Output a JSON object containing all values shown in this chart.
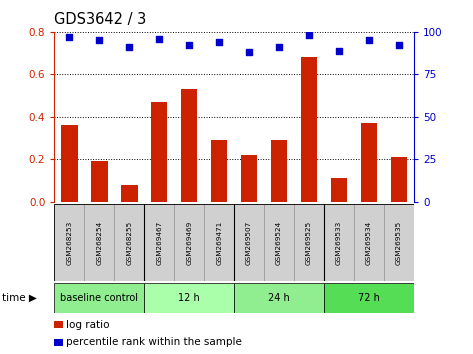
{
  "title": "GDS3642 / 3",
  "samples": [
    "GSM268253",
    "GSM268254",
    "GSM268255",
    "GSM269467",
    "GSM269469",
    "GSM269471",
    "GSM269507",
    "GSM269524",
    "GSM269525",
    "GSM269533",
    "GSM269534",
    "GSM269535"
  ],
  "log_ratio": [
    0.36,
    0.19,
    0.08,
    0.47,
    0.53,
    0.29,
    0.22,
    0.29,
    0.68,
    0.11,
    0.37,
    0.21
  ],
  "percentile_rank": [
    97,
    95,
    91,
    96,
    92,
    94,
    88,
    91,
    98,
    89,
    95,
    92
  ],
  "bar_color": "#cc2200",
  "dot_color": "#0000cc",
  "groups": [
    {
      "label": "baseline control",
      "start": 0,
      "end": 3,
      "color": "#90ee90"
    },
    {
      "label": "12 h",
      "start": 3,
      "end": 6,
      "color": "#aaffaa"
    },
    {
      "label": "24 h",
      "start": 6,
      "end": 9,
      "color": "#90ee90"
    },
    {
      "label": "72 h",
      "start": 9,
      "end": 12,
      "color": "#55dd55"
    }
  ],
  "ylim_left": [
    0,
    0.8
  ],
  "ylim_right": [
    0,
    100
  ],
  "yticks_left": [
    0,
    0.2,
    0.4,
    0.6,
    0.8
  ],
  "yticks_right": [
    0,
    25,
    50,
    75,
    100
  ],
  "bg_color": "#ffffff",
  "bar_color_r": "#cc2200",
  "dot_color_b": "#0000cc",
  "group_boundaries": [
    3,
    6,
    9
  ]
}
